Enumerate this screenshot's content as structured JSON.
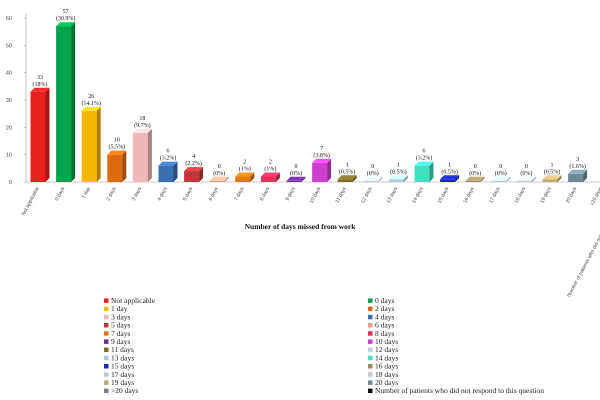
{
  "chart_data": {
    "type": "bar",
    "title": "",
    "xlabel": "Number of days missed from work",
    "ylabel": "",
    "ylim": [
      0,
      60
    ],
    "yticks": [
      0,
      10,
      20,
      30,
      40,
      50,
      60
    ],
    "grid": false,
    "legend_position": "bottom",
    "categories": [
      "Not applicable",
      "0 days",
      "1 day",
      "2 days",
      "3 days",
      "4 days",
      "5 days",
      "6 days",
      "7 days",
      "8 days",
      "9 days",
      "10 days",
      "11 days",
      "12 days",
      "13 days",
      "14 days",
      "15 days",
      "16 days",
      "17 days",
      "18 days",
      "19 days",
      "20 days",
      ">20 days",
      "Number of patients who did not respond to this question"
    ],
    "values": [
      33,
      57,
      26,
      10,
      18,
      6,
      4,
      0,
      2,
      2,
      0,
      7,
      1,
      0,
      1,
      6,
      1,
      0,
      0,
      0,
      1,
      3,
      null,
      null
    ],
    "percent_labels": [
      "(18%)",
      "(30.9%)",
      "(14.1%)",
      "(5.5%)",
      "(9.7%)",
      "(3.2%)",
      "(2.2%)",
      "(0%)",
      "(1%)",
      "(1%)",
      "(0%)",
      "(3.8%)",
      "(0.5%)",
      "(0%)",
      "(0.5%)",
      "(3.2%)",
      "(0.5%)",
      "(0%)",
      "(0%)",
      "(0%)",
      "(0.5%)",
      "(1.6%)",
      "",
      ""
    ],
    "colors": [
      "#e8211f",
      "#00a34a",
      "#f5b800",
      "#e06a10",
      "#f0b8b8",
      "#3a6fb0",
      "#c0363a",
      "#e8a38c",
      "#e07818",
      "#e0325a",
      "#6a2a90",
      "#d040d0",
      "#7a6a28",
      "#c0cce0",
      "#aaccdd",
      "#40e0c0",
      "#1a2ab0",
      "#9a8a60",
      "#b8c8d8",
      "#c0c8d0",
      "#c0a870",
      "#6f8a96",
      "#7a7a7a",
      "#111111"
    ],
    "legend": [
      "Not applicable",
      "0 days",
      "1 day",
      "2 days",
      "3 days",
      "4 days",
      "5 days",
      "6 days",
      "7 days",
      "8 days",
      "9 days",
      "10 days",
      "11 days",
      "12 days",
      "13 days",
      "14 days",
      "15 days",
      "16 days",
      "17 days",
      "18 days",
      "19 days",
      "20 days",
      ">20 days",
      "Number of patients who did not respond to this question"
    ]
  }
}
